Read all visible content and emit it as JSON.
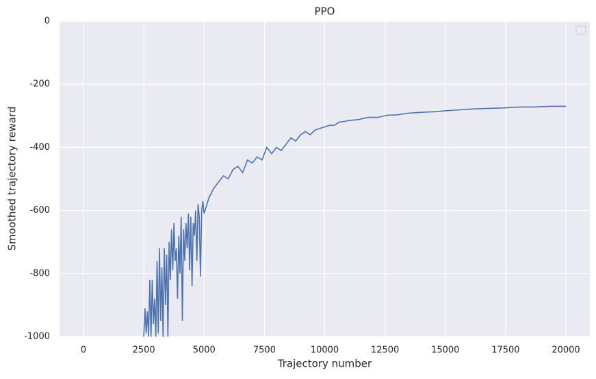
{
  "chart_data": {
    "type": "line",
    "title": "PPO",
    "x_label": "Trajectory number",
    "y_label": "Smoothed trajectory reward",
    "color": "#4c72b0",
    "grid": true,
    "xlim": [
      -993,
      20993
    ],
    "ylim": [
      -1000,
      0
    ],
    "xticks": [
      0,
      2500,
      5000,
      7500,
      10000,
      12500,
      15000,
      17500,
      20000
    ],
    "yticks": [
      -1000,
      -800,
      -600,
      -400,
      -200,
      0
    ],
    "x": [
      2500,
      2550,
      2600,
      2650,
      2700,
      2750,
      2800,
      2850,
      2900,
      2950,
      3000,
      3050,
      3100,
      3150,
      3200,
      3250,
      3300,
      3350,
      3400,
      3450,
      3500,
      3550,
      3600,
      3650,
      3700,
      3750,
      3800,
      3850,
      3900,
      3950,
      4000,
      4050,
      4100,
      4150,
      4200,
      4250,
      4300,
      4350,
      4400,
      4450,
      4500,
      4550,
      4600,
      4650,
      4700,
      4750,
      4800,
      4850,
      4900,
      4950,
      5000,
      5200,
      5400,
      5600,
      5800,
      6000,
      6200,
      6400,
      6600,
      6800,
      7000,
      7200,
      7400,
      7600,
      7800,
      8000,
      8200,
      8400,
      8600,
      8800,
      9000,
      9200,
      9400,
      9600,
      9800,
      10000,
      10200,
      10400,
      10600,
      10800,
      11000,
      11400,
      11800,
      12200,
      12600,
      13000,
      13400,
      13800,
      14200,
      14600,
      15000,
      15400,
      15800,
      16200,
      16600,
      17000,
      17400,
      17800,
      18200,
      18600,
      19000,
      19400,
      19800,
      20000
    ],
    "values": [
      -1000,
      -910,
      -990,
      -920,
      -1000,
      -820,
      -1000,
      -820,
      -960,
      -880,
      -1000,
      -760,
      -990,
      -720,
      -950,
      -780,
      -1000,
      -720,
      -900,
      -740,
      -1000,
      -700,
      -820,
      -660,
      -790,
      -640,
      -760,
      -720,
      -880,
      -680,
      -800,
      -620,
      -950,
      -660,
      -760,
      -640,
      -720,
      -610,
      -790,
      -620,
      -840,
      -640,
      -680,
      -600,
      -760,
      -580,
      -620,
      -810,
      -600,
      -570,
      -610,
      -560,
      -530,
      -510,
      -490,
      -500,
      -470,
      -460,
      -480,
      -440,
      -450,
      -430,
      -440,
      -400,
      -420,
      -400,
      -410,
      -390,
      -370,
      -380,
      -360,
      -350,
      -360,
      -345,
      -340,
      -335,
      -330,
      -330,
      -320,
      -318,
      -315,
      -312,
      -305,
      -305,
      -298,
      -297,
      -292,
      -290,
      -288,
      -287,
      -284,
      -282,
      -280,
      -278,
      -277,
      -276,
      -275,
      -273,
      -272,
      -272,
      -271,
      -270,
      -270,
      -270
    ]
  }
}
